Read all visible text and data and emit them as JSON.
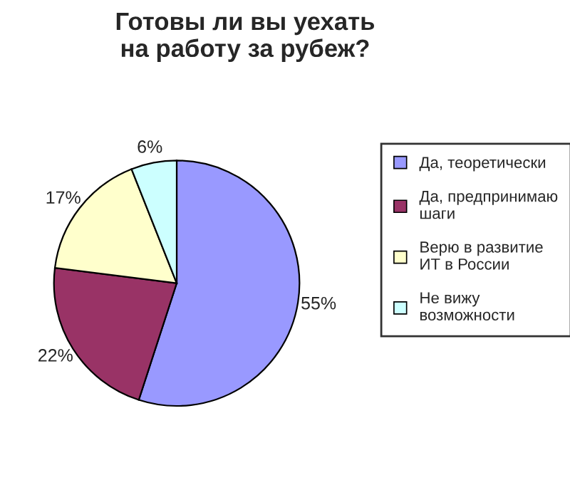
{
  "chart_data": {
    "type": "pie",
    "title": "Готовы ли вы уехать\nна работу за рубеж?",
    "categories": [
      "Да, теоретически",
      "Да, предпринимаю\nшаги",
      "Верю в развитие\nИТ в России",
      "Не вижу\nвозможности"
    ],
    "values": [
      55,
      22,
      17,
      6
    ],
    "colors": [
      "#9999ff",
      "#993366",
      "#ffffcc",
      "#ccffff"
    ],
    "value_labels": [
      "55%",
      "22%",
      "17%",
      "6%"
    ],
    "legend": "right"
  }
}
